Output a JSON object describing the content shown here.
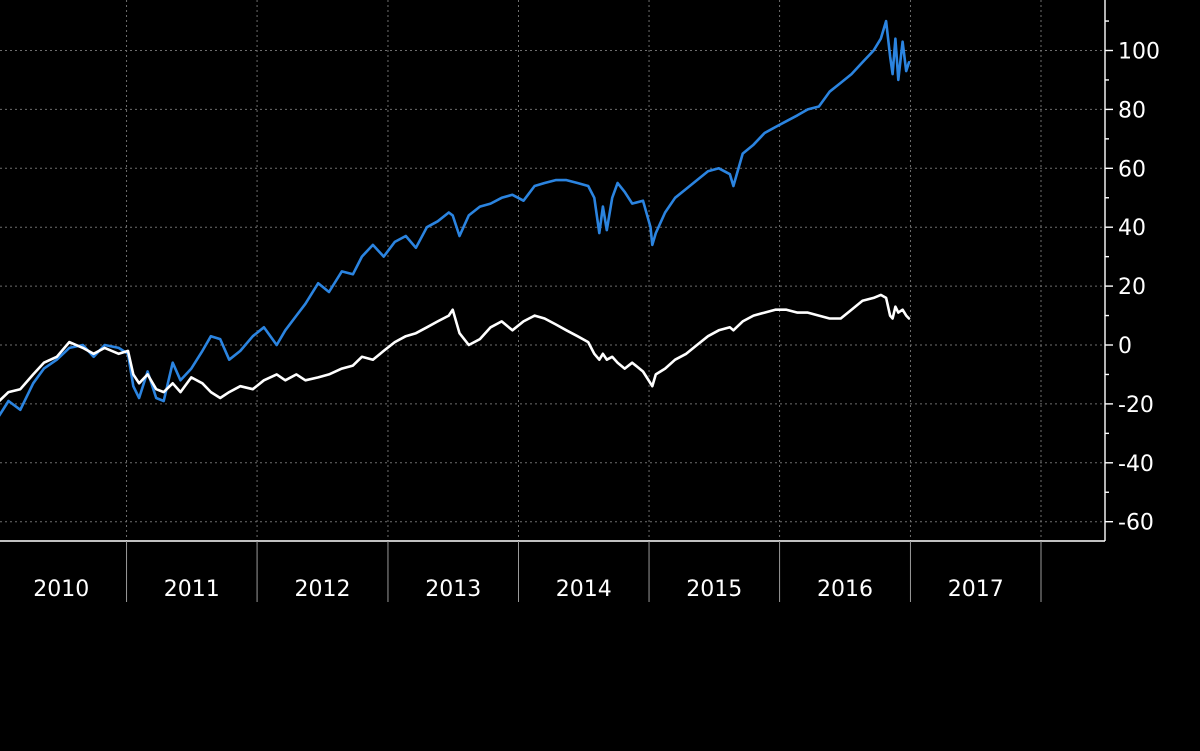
{
  "colors": {
    "background": "#000000",
    "grid": "#6e6e6e",
    "axis": "#ffffff",
    "text": "#ffffff"
  },
  "chart_data": {
    "type": "line",
    "title": "",
    "xlabel": "",
    "ylabel": "",
    "x_axis": {
      "kind": "date",
      "range": [
        "2009-06-01",
        "2018-03-30"
      ],
      "tick_labels": [
        "2010",
        "2011",
        "2012",
        "2013",
        "2014",
        "2015",
        "2016",
        "2017"
      ]
    },
    "y_axis": {
      "side": "right",
      "ylim": [
        -65,
        115
      ],
      "ticks": [
        -60,
        -40,
        -20,
        0,
        20,
        40,
        60,
        80,
        100
      ],
      "tick_labels": [
        "-60",
        "-40",
        "-20",
        "0",
        "20",
        "40",
        "60",
        "80",
        "100"
      ]
    },
    "grid": true,
    "legend": "none",
    "series": [
      {
        "color": "#2b84e0",
        "points": [
          [
            "2009-06-01",
            -19
          ],
          [
            "2009-07-01",
            -21
          ],
          [
            "2009-08-15",
            -15
          ],
          [
            "2009-09-20",
            -12
          ],
          [
            "2009-10-20",
            -19
          ],
          [
            "2009-11-15",
            -15
          ],
          [
            "2009-12-10",
            -20
          ],
          [
            "2010-01-10",
            -24
          ],
          [
            "2010-02-05",
            -19
          ],
          [
            "2010-03-10",
            -22
          ],
          [
            "2010-04-15",
            -13
          ],
          [
            "2010-05-15",
            -8
          ],
          [
            "2010-06-20",
            -5
          ],
          [
            "2010-07-25",
            -1
          ],
          [
            "2010-09-01",
            0
          ],
          [
            "2010-10-01",
            -4
          ],
          [
            "2010-11-01",
            0
          ],
          [
            "2010-12-10",
            -1
          ],
          [
            "2011-01-05",
            -3
          ],
          [
            "2011-01-20",
            -14
          ],
          [
            "2011-02-05",
            -18
          ],
          [
            "2011-03-01",
            -9
          ],
          [
            "2011-03-25",
            -18
          ],
          [
            "2011-04-15",
            -19
          ],
          [
            "2011-05-10",
            -6
          ],
          [
            "2011-06-01",
            -12
          ],
          [
            "2011-07-01",
            -8
          ],
          [
            "2011-08-01",
            -2
          ],
          [
            "2011-08-25",
            3
          ],
          [
            "2011-09-20",
            2
          ],
          [
            "2011-10-15",
            -5
          ],
          [
            "2011-11-15",
            -2
          ],
          [
            "2011-12-20",
            3
          ],
          [
            "2012-01-20",
            6
          ],
          [
            "2012-02-25",
            0
          ],
          [
            "2012-03-20",
            5
          ],
          [
            "2012-04-20",
            10
          ],
          [
            "2012-05-15",
            14
          ],
          [
            "2012-06-20",
            21
          ],
          [
            "2012-07-20",
            18
          ],
          [
            "2012-08-25",
            25
          ],
          [
            "2012-09-25",
            24
          ],
          [
            "2012-10-20",
            30
          ],
          [
            "2012-11-20",
            34
          ],
          [
            "2012-12-20",
            30
          ],
          [
            "2013-01-20",
            35
          ],
          [
            "2013-02-20",
            37
          ],
          [
            "2013-03-20",
            33
          ],
          [
            "2013-04-20",
            40
          ],
          [
            "2013-05-20",
            42
          ],
          [
            "2013-06-20",
            45
          ],
          [
            "2013-07-01",
            44
          ],
          [
            "2013-07-20",
            37
          ],
          [
            "2013-08-15",
            44
          ],
          [
            "2013-09-15",
            47
          ],
          [
            "2013-10-15",
            48
          ],
          [
            "2013-11-15",
            50
          ],
          [
            "2013-12-15",
            51
          ],
          [
            "2014-01-15",
            49
          ],
          [
            "2014-02-15",
            54
          ],
          [
            "2014-03-15",
            55
          ],
          [
            "2014-04-15",
            56
          ],
          [
            "2014-05-15",
            56
          ],
          [
            "2014-06-15",
            55
          ],
          [
            "2014-07-15",
            54
          ],
          [
            "2014-08-01",
            50
          ],
          [
            "2014-08-15",
            38
          ],
          [
            "2014-08-25",
            47
          ],
          [
            "2014-09-05",
            39
          ],
          [
            "2014-09-20",
            50
          ],
          [
            "2014-10-05",
            55
          ],
          [
            "2014-10-25",
            52
          ],
          [
            "2014-11-15",
            48
          ],
          [
            "2014-12-15",
            49
          ],
          [
            "2015-01-05",
            40
          ],
          [
            "2015-01-10",
            34
          ],
          [
            "2015-01-20",
            38
          ],
          [
            "2015-02-15",
            45
          ],
          [
            "2015-03-15",
            50
          ],
          [
            "2015-04-15",
            53
          ],
          [
            "2015-05-15",
            56
          ],
          [
            "2015-06-15",
            59
          ],
          [
            "2015-07-15",
            60
          ],
          [
            "2015-08-15",
            58
          ],
          [
            "2015-08-25",
            54
          ],
          [
            "2015-09-20",
            65
          ],
          [
            "2015-10-20",
            68
          ],
          [
            "2015-11-20",
            72
          ],
          [
            "2015-12-20",
            74
          ],
          [
            "2016-01-20",
            76
          ],
          [
            "2016-02-20",
            78
          ],
          [
            "2016-03-20",
            80
          ],
          [
            "2016-04-20",
            81
          ],
          [
            "2016-05-20",
            86
          ],
          [
            "2016-06-20",
            89
          ],
          [
            "2016-07-20",
            92
          ],
          [
            "2016-08-20",
            96
          ],
          [
            "2016-09-20",
            100
          ],
          [
            "2016-10-10",
            104
          ],
          [
            "2016-10-25",
            110
          ],
          [
            "2016-11-05",
            98
          ],
          [
            "2016-11-12",
            92
          ],
          [
            "2016-11-20",
            104
          ],
          [
            "2016-11-28",
            90
          ],
          [
            "2016-12-10",
            103
          ],
          [
            "2016-12-20",
            93
          ],
          [
            "2016-12-28",
            96
          ]
        ]
      },
      {
        "color": "#ffffff",
        "points": [
          [
            "2009-06-01",
            -18
          ],
          [
            "2009-07-01",
            -20
          ],
          [
            "2009-08-15",
            -13
          ],
          [
            "2009-09-20",
            -12
          ],
          [
            "2009-10-20",
            -17
          ],
          [
            "2009-11-15",
            -14
          ],
          [
            "2009-12-10",
            -18
          ],
          [
            "2010-01-10",
            -19
          ],
          [
            "2010-02-05",
            -16
          ],
          [
            "2010-03-10",
            -15
          ],
          [
            "2010-04-15",
            -10
          ],
          [
            "2010-05-15",
            -6
          ],
          [
            "2010-06-20",
            -4
          ],
          [
            "2010-07-25",
            1
          ],
          [
            "2010-09-01",
            -1
          ],
          [
            "2010-10-01",
            -3
          ],
          [
            "2010-11-01",
            -1
          ],
          [
            "2010-12-10",
            -3
          ],
          [
            "2011-01-05",
            -2
          ],
          [
            "2011-01-20",
            -10
          ],
          [
            "2011-02-05",
            -13
          ],
          [
            "2011-03-01",
            -10
          ],
          [
            "2011-03-25",
            -15
          ],
          [
            "2011-04-15",
            -16
          ],
          [
            "2011-05-10",
            -13
          ],
          [
            "2011-06-01",
            -16
          ],
          [
            "2011-07-01",
            -11
          ],
          [
            "2011-08-01",
            -13
          ],
          [
            "2011-08-25",
            -16
          ],
          [
            "2011-09-20",
            -18
          ],
          [
            "2011-10-15",
            -16
          ],
          [
            "2011-11-15",
            -14
          ],
          [
            "2011-12-20",
            -15
          ],
          [
            "2012-01-20",
            -12
          ],
          [
            "2012-02-25",
            -10
          ],
          [
            "2012-03-20",
            -12
          ],
          [
            "2012-04-20",
            -10
          ],
          [
            "2012-05-15",
            -12
          ],
          [
            "2012-06-20",
            -11
          ],
          [
            "2012-07-20",
            -10
          ],
          [
            "2012-08-25",
            -8
          ],
          [
            "2012-09-25",
            -7
          ],
          [
            "2012-10-20",
            -4
          ],
          [
            "2012-11-20",
            -5
          ],
          [
            "2012-12-20",
            -2
          ],
          [
            "2013-01-20",
            1
          ],
          [
            "2013-02-20",
            3
          ],
          [
            "2013-03-20",
            4
          ],
          [
            "2013-04-20",
            6
          ],
          [
            "2013-05-20",
            8
          ],
          [
            "2013-06-20",
            10
          ],
          [
            "2013-07-01",
            12
          ],
          [
            "2013-07-20",
            4
          ],
          [
            "2013-08-15",
            0
          ],
          [
            "2013-09-15",
            2
          ],
          [
            "2013-10-15",
            6
          ],
          [
            "2013-11-15",
            8
          ],
          [
            "2013-12-15",
            5
          ],
          [
            "2014-01-15",
            8
          ],
          [
            "2014-02-15",
            10
          ],
          [
            "2014-03-15",
            9
          ],
          [
            "2014-04-15",
            7
          ],
          [
            "2014-05-15",
            5
          ],
          [
            "2014-06-15",
            3
          ],
          [
            "2014-07-15",
            1
          ],
          [
            "2014-08-01",
            -3
          ],
          [
            "2014-08-15",
            -5
          ],
          [
            "2014-08-25",
            -3
          ],
          [
            "2014-09-05",
            -5
          ],
          [
            "2014-09-20",
            -4
          ],
          [
            "2014-10-05",
            -6
          ],
          [
            "2014-10-25",
            -8
          ],
          [
            "2014-11-15",
            -6
          ],
          [
            "2014-12-15",
            -9
          ],
          [
            "2015-01-05",
            -13
          ],
          [
            "2015-01-10",
            -14
          ],
          [
            "2015-01-20",
            -10
          ],
          [
            "2015-02-15",
            -8
          ],
          [
            "2015-03-15",
            -5
          ],
          [
            "2015-04-15",
            -3
          ],
          [
            "2015-05-15",
            0
          ],
          [
            "2015-06-15",
            3
          ],
          [
            "2015-07-15",
            5
          ],
          [
            "2015-08-15",
            6
          ],
          [
            "2015-08-25",
            5
          ],
          [
            "2015-09-20",
            8
          ],
          [
            "2015-10-20",
            10
          ],
          [
            "2015-11-20",
            11
          ],
          [
            "2015-12-20",
            12
          ],
          [
            "2016-01-20",
            12
          ],
          [
            "2016-02-20",
            11
          ],
          [
            "2016-03-20",
            11
          ],
          [
            "2016-04-20",
            10
          ],
          [
            "2016-05-20",
            9
          ],
          [
            "2016-06-20",
            9
          ],
          [
            "2016-07-20",
            12
          ],
          [
            "2016-08-20",
            15
          ],
          [
            "2016-09-20",
            16
          ],
          [
            "2016-10-10",
            17
          ],
          [
            "2016-10-25",
            16
          ],
          [
            "2016-11-05",
            10
          ],
          [
            "2016-11-12",
            9
          ],
          [
            "2016-11-20",
            13
          ],
          [
            "2016-11-28",
            11
          ],
          [
            "2016-12-10",
            12
          ],
          [
            "2016-12-20",
            10
          ],
          [
            "2016-12-28",
            9
          ]
        ]
      }
    ]
  }
}
